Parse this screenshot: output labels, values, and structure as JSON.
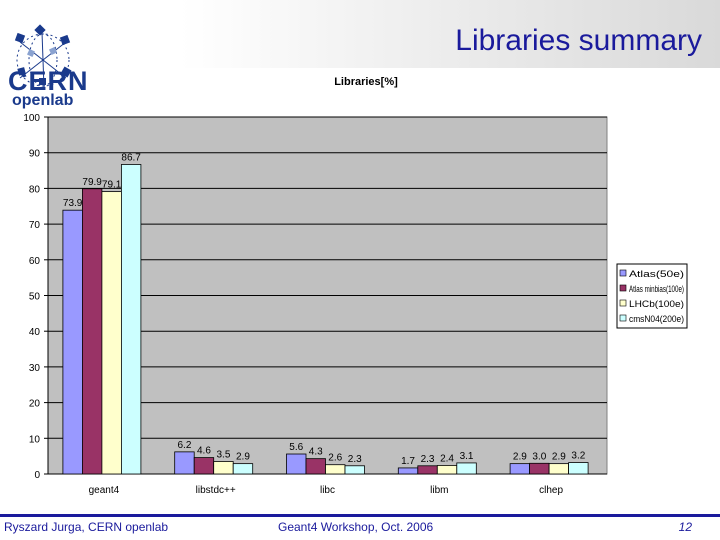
{
  "slide": {
    "title": "Libraries summary",
    "logo": {
      "name": "CERN",
      "subtitle": "openlab"
    }
  },
  "footer": {
    "author": "Ryszard Jurga, CERN openlab",
    "event": "Geant4 Workshop, Oct. 2006",
    "page": "12"
  },
  "chart_data": {
    "type": "bar",
    "title": "Libraries[%]",
    "xlabel": "",
    "ylabel": "",
    "ylim": [
      0,
      100
    ],
    "yticks": [
      0,
      10,
      20,
      30,
      40,
      50,
      60,
      70,
      80,
      90,
      100
    ],
    "categories": [
      "geant4",
      "libstdc++",
      "libc",
      "libm",
      "clhep"
    ],
    "series": [
      {
        "name": "Atlas(50e)",
        "color": "#9999ff",
        "values": [
          73.9,
          6.2,
          5.6,
          1.7,
          2.9
        ]
      },
      {
        "name": "Atlas minbias(100e)",
        "color": "#993366",
        "values": [
          79.9,
          4.6,
          4.3,
          2.3,
          3.0
        ]
      },
      {
        "name": "LHCb(100e)",
        "color": "#ffffcc",
        "values": [
          79.1,
          3.5,
          2.6,
          2.4,
          2.9
        ]
      },
      {
        "name": "cmsN04(200e)",
        "color": "#ccffff",
        "values": [
          86.7,
          2.9,
          2.3,
          3.1,
          3.2
        ]
      }
    ],
    "data_labels": [
      [
        "73.9",
        "79.9",
        "79.1",
        "86.7"
      ],
      [
        "6.2",
        "4.6",
        "3.5",
        "2.9"
      ],
      [
        "5.6",
        "4.3",
        "2.6",
        "2.3"
      ],
      [
        "1.7",
        "2.3",
        "2.4",
        "3.1"
      ],
      [
        "2.9",
        "3.0",
        "2.9",
        "3.2"
      ]
    ],
    "grid": true,
    "legend_position": "right"
  }
}
